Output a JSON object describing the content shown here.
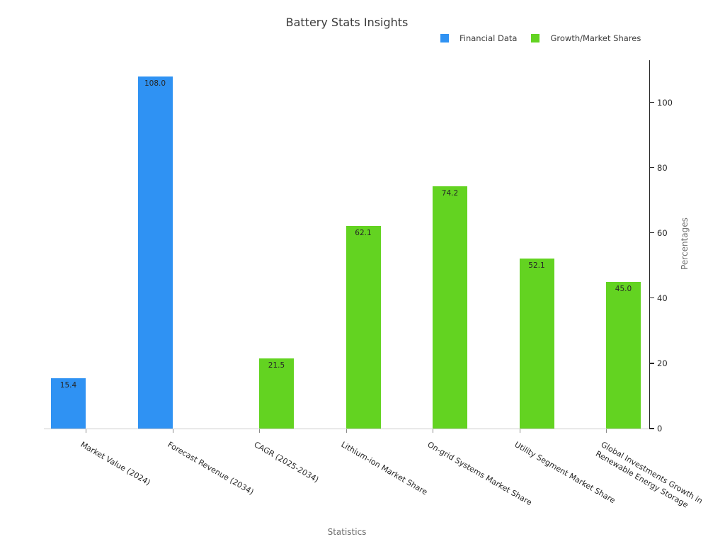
{
  "chart_data": {
    "type": "bar",
    "title": "Battery Stats Insights",
    "xlabel": "Statistics",
    "ylabel": "Percentages",
    "categories": [
      "Market Value (2024)",
      "Forecast Revenue (2034)",
      "CAGR (2025-2034)",
      "Lithium-ion Market Share",
      "On-grid Systems Market Share",
      "Utility Segment Market Share",
      "Global Investments Growth in\nRenewable Energy Storage"
    ],
    "series": [
      {
        "name": "Financial Data",
        "color": "#2F92F3",
        "values": [
          15.4,
          108.0,
          null,
          null,
          null,
          null,
          null
        ]
      },
      {
        "name": "Growth/Market Shares",
        "color": "#63D321",
        "values": [
          null,
          null,
          21.5,
          62.1,
          74.2,
          52.1,
          45.0
        ]
      }
    ],
    "bar_value_labels": [
      "15.4",
      "108.0",
      "21.5",
      "62.1",
      "74.2",
      "52.1",
      "45.0"
    ],
    "yticks": [
      0,
      20,
      40,
      60,
      80,
      100
    ],
    "ylim": [
      0,
      112.9
    ],
    "grid": false,
    "legend_position": "top-right above plot",
    "y_axis_side": "right",
    "category_label_rotation_deg": 30
  }
}
